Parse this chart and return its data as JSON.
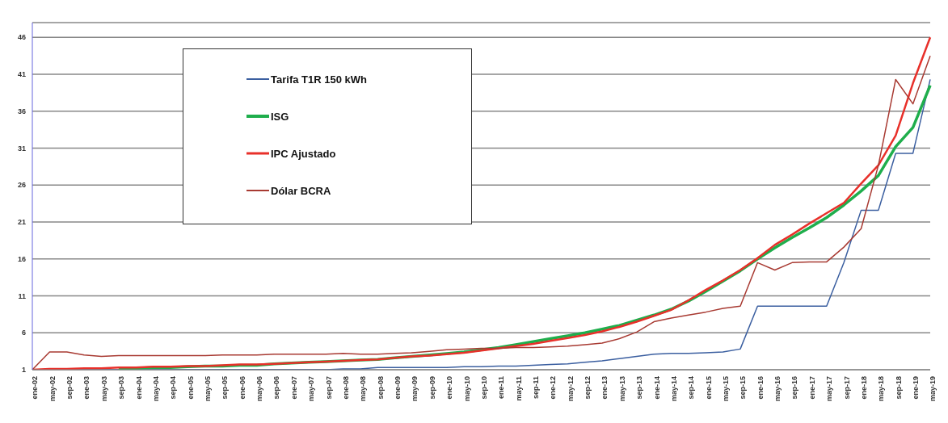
{
  "chart_data": {
    "type": "line",
    "categories": [
      "ene-02",
      "may-02",
      "sep-02",
      "ene-03",
      "may-03",
      "sep-03",
      "ene-04",
      "may-04",
      "sep-04",
      "ene-05",
      "may-05",
      "sep-05",
      "ene-06",
      "may-06",
      "sep-06",
      "ene-07",
      "may-07",
      "sep-07",
      "ene-08",
      "may-08",
      "sep-08",
      "ene-09",
      "may-09",
      "sep-09",
      "ene-10",
      "may-10",
      "sep-10",
      "ene-11",
      "may-11",
      "sep-11",
      "ene-12",
      "may-12",
      "sep-12",
      "ene-13",
      "may-13",
      "sep-13",
      "ene-14",
      "may-14",
      "sep-14",
      "ene-15",
      "may-15",
      "sep-15",
      "ene-16",
      "may-16",
      "sep-16",
      "ene-17",
      "may-17",
      "sep-17",
      "ene-18",
      "may-18",
      "sep-18",
      "ene-19",
      "may-19"
    ],
    "series": [
      {
        "name": "Tarifa T1R 150 kWh",
        "color": "#3b5fa0",
        "values": [
          1,
          1,
          1,
          1,
          1,
          1,
          1,
          1,
          1,
          1,
          1,
          1,
          1,
          1,
          1,
          1,
          1,
          1,
          1.1,
          1.1,
          1.3,
          1.3,
          1.3,
          1.3,
          1.3,
          1.4,
          1.4,
          1.5,
          1.5,
          1.6,
          1.7,
          1.8,
          2.0,
          2.2,
          2.5,
          2.8,
          3.1,
          3.2,
          3.2,
          3.3,
          3.4,
          3.8,
          9.6,
          9.6,
          9.6,
          9.6,
          9.6,
          15.5,
          22.6,
          22.6,
          30.3,
          30.3,
          40.3
        ]
      },
      {
        "name": "ISG",
        "color": "#1fae4c",
        "values": [
          null,
          null,
          null,
          null,
          null,
          1.2,
          1.2,
          1.3,
          1.3,
          1.4,
          1.5,
          1.5,
          1.6,
          1.6,
          1.8,
          1.9,
          2.0,
          2.1,
          2.2,
          2.3,
          2.4,
          2.6,
          2.8,
          3.0,
          3.2,
          3.4,
          3.7,
          4.0,
          4.4,
          4.8,
          5.2,
          5.6,
          6.0,
          6.5,
          7.0,
          7.7,
          8.4,
          9.2,
          10.3,
          11.6,
          13.0,
          14.4,
          16.0,
          17.5,
          18.9,
          20.2,
          21.6,
          23.3,
          25.2,
          27.3,
          31.2,
          33.8,
          39.5
        ]
      },
      {
        "name": "IPC Ajustado",
        "color": "#e8302a",
        "values": [
          1,
          1.1,
          1.1,
          1.2,
          1.2,
          1.3,
          1.3,
          1.4,
          1.4,
          1.5,
          1.5,
          1.6,
          1.7,
          1.7,
          1.8,
          1.9,
          2.0,
          2.1,
          2.2,
          2.3,
          2.4,
          2.6,
          2.8,
          2.9,
          3.1,
          3.3,
          3.6,
          3.9,
          4.2,
          4.5,
          4.9,
          5.3,
          5.7,
          6.2,
          6.8,
          7.5,
          8.3,
          9.1,
          10.4,
          11.8,
          13.1,
          14.5,
          16.1,
          17.9,
          19.3,
          20.8,
          22.2,
          23.6,
          26.2,
          28.7,
          32.7,
          39.8,
          46
        ]
      },
      {
        "name": "Dólar BCRA",
        "color": "#a83a32",
        "values": [
          1,
          3.4,
          3.4,
          3.0,
          2.8,
          2.9,
          2.9,
          2.9,
          2.9,
          2.9,
          2.9,
          3.0,
          3.0,
          3.0,
          3.1,
          3.1,
          3.1,
          3.1,
          3.2,
          3.1,
          3.1,
          3.2,
          3.3,
          3.5,
          3.7,
          3.8,
          3.9,
          3.9,
          4.0,
          4.0,
          4.1,
          4.2,
          4.4,
          4.6,
          5.2,
          6.1,
          7.5,
          8.0,
          8.4,
          8.8,
          9.3,
          9.6,
          15.5,
          14.5,
          15.5,
          15.6,
          15.6,
          17.6,
          20.1,
          28.7,
          40.3,
          37,
          43.5
        ]
      }
    ],
    "ylim": [
      1,
      48
    ],
    "yticks": [
      1,
      6,
      11,
      16,
      21,
      26,
      31,
      36,
      41,
      46
    ],
    "grid": "y",
    "legend": "top left"
  }
}
